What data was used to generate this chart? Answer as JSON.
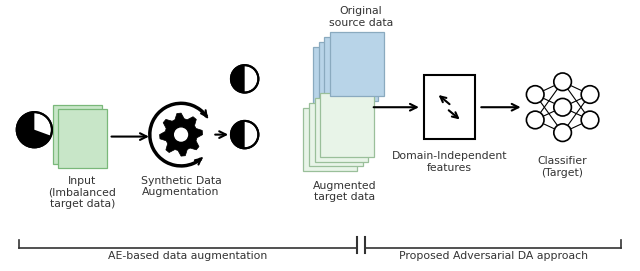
{
  "fig_width": 6.4,
  "fig_height": 2.71,
  "dpi": 100,
  "bg_color": "#ffffff",
  "labels": {
    "input": "Input\n(Imbalanced\ntarget data)",
    "synth": "Synthetic Data\nAugmentation",
    "orig_source": "Original\nsource data",
    "augmented": "Augmented\ntarget data",
    "domain_indep": "Domain-Independent\nfeatures",
    "classifier": "Classifier\n(Target)",
    "ae_label": "AE-based data augmentation",
    "proposed_label": "Proposed Adversarial DA approach"
  },
  "colors": {
    "green_box": "#c8e6c8",
    "green_box_edge": "#7ab87a",
    "blue_stack": "#b8d4e8",
    "blue_stack_edge": "#8aaabf",
    "green_stack": "#e8f4e8",
    "green_stack_edge": "#9abf9a",
    "box_fill": "#ffffff",
    "box_edge": "#222222",
    "arrow": "#111111",
    "text": "#333333",
    "bracket_line": "#333333"
  },
  "font_size": 7.8
}
